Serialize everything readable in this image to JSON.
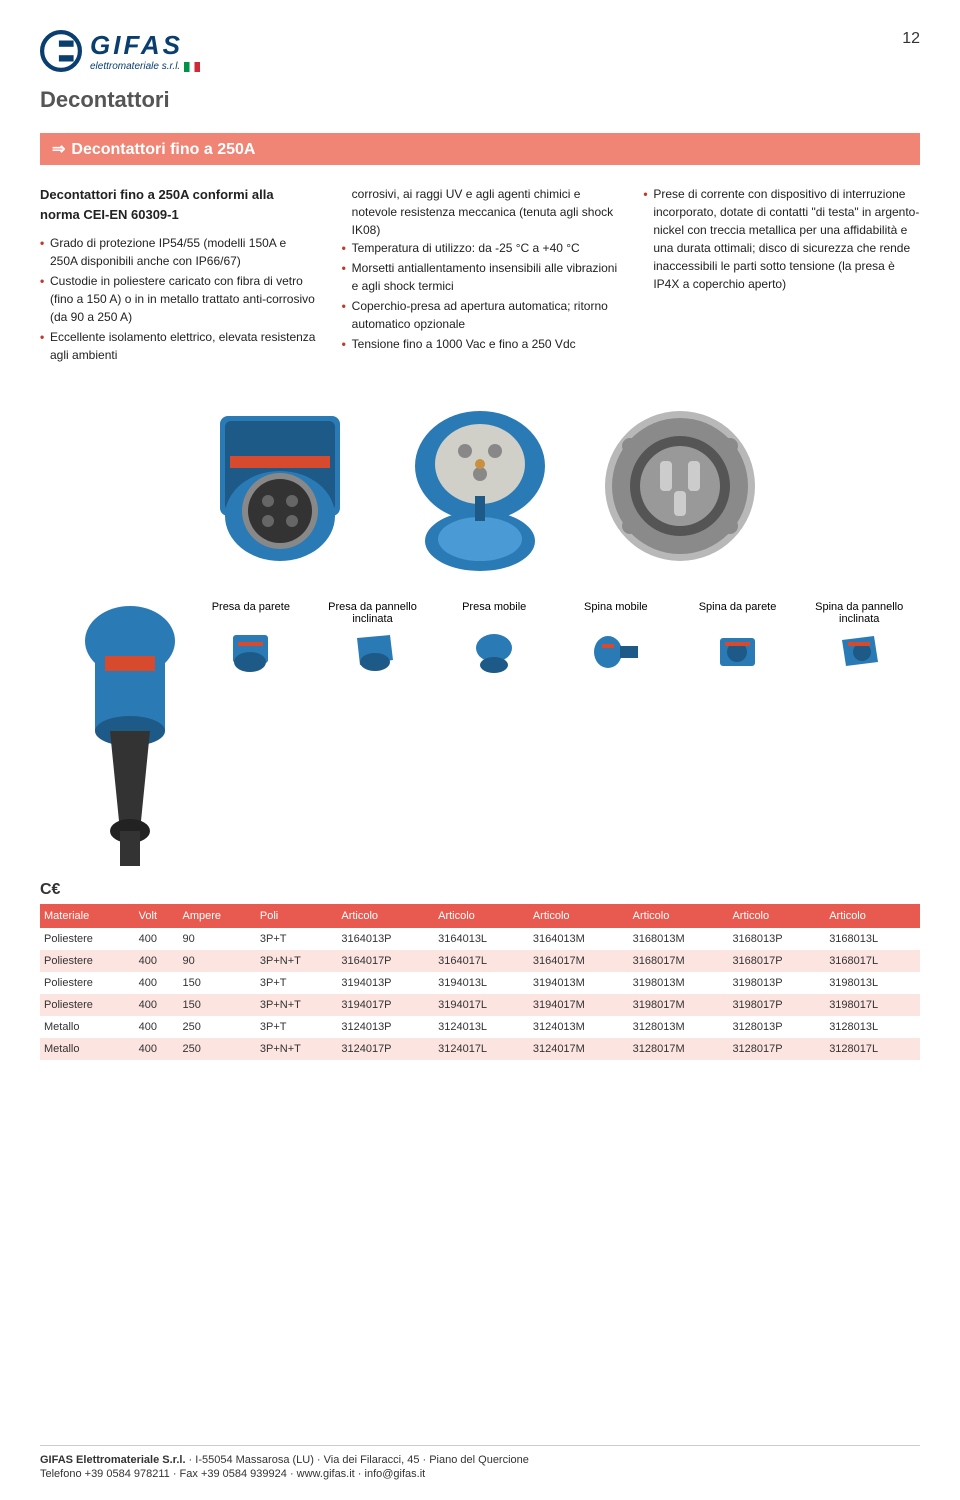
{
  "page_number": "12",
  "logo": {
    "main": "GIFAS",
    "sub": "elettromateriale s.r.l."
  },
  "section_title": "Decontattori",
  "banner": "Decontattori fino a 250A",
  "col1": {
    "title": "Decontattori fino a 250A conformi alla norma CEI-EN 60309-1",
    "items": [
      "Grado di protezione IP54/55 (modelli 150A e 250A disponibili anche con IP66/67)",
      "Custodie in poliestere caricato con fibra di vetro (fino a 150 A) o in in metallo trattato anti-corrosivo (da 90 a 250 A)",
      "Eccellente isolamento elettrico, elevata resistenza agli ambienti"
    ]
  },
  "col2": {
    "items": [
      "corrosivi, ai raggi UV e agli agenti chimici e notevole resistenza meccanica (tenuta agli shock IK08)",
      "Temperatura di utilizzo: da -25 °C a +40 °C",
      "Morsetti antiallentamento insensibili alle vibrazioni e agli shock termici",
      "Coperchio-presa ad apertura automatica; ritorno automatico opzionale",
      "Tensione fino a 1000 Vac e fino a 250 Vdc"
    ]
  },
  "col3": {
    "items": [
      "Prese di corrente con dispositivo di interruzione incorporato, dotate di contatti \"di testa\" in argento-nickel con treccia metallica per una affidabilità e una durata ottimali; disco di sicurezza che rende inaccessibili le parti sotto tensione (la presa è IP4X a coperchio aperto)"
    ]
  },
  "product_labels": [
    "Presa da parete",
    "Presa da pannello inclinata",
    "Presa mobile",
    "Spina mobile",
    "Spina da parete",
    "Spina da pannello inclinata"
  ],
  "ce_mark": "CE",
  "table": {
    "headers": [
      "Materiale",
      "Volt",
      "Ampere",
      "Poli",
      "Articolo",
      "Articolo",
      "Articolo",
      "Articolo",
      "Articolo",
      "Articolo"
    ],
    "rows": [
      [
        "Poliestere",
        "400",
        "90",
        "3P+T",
        "3164013P",
        "3164013L",
        "3164013M",
        "3168013M",
        "3168013P",
        "3168013L"
      ],
      [
        "Poliestere",
        "400",
        "90",
        "3P+N+T",
        "3164017P",
        "3164017L",
        "3164017M",
        "3168017M",
        "3168017P",
        "3168017L"
      ],
      [
        "Poliestere",
        "400",
        "150",
        "3P+T",
        "3194013P",
        "3194013L",
        "3194013M",
        "3198013M",
        "3198013P",
        "3198013L"
      ],
      [
        "Poliestere",
        "400",
        "150",
        "3P+N+T",
        "3194017P",
        "3194017L",
        "3194017M",
        "3198017M",
        "3198017P",
        "3198017L"
      ],
      [
        "Metallo",
        "400",
        "250",
        "3P+T",
        "3124013P",
        "3124013L",
        "3124013M",
        "3128013M",
        "3128013P",
        "3128013L"
      ],
      [
        "Metallo",
        "400",
        "250",
        "3P+N+T",
        "3124017P",
        "3124017L",
        "3124017M",
        "3128017M",
        "3128017P",
        "3128017L"
      ]
    ]
  },
  "footer": {
    "line1_bold": "GIFAS Elettromateriale S.r.l.",
    "line1_rest": " · I-55054 Massarosa (LU) · Via dei Filaracci, 45 · Piano del Quercione",
    "line2": "Telefono +39 0584 978211 · Fax +39 0584 939924 · www.gifas.it · info@gifas.it"
  },
  "colors": {
    "brand_blue": "#0a3e6f",
    "banner_bg": "#f08475",
    "table_header": "#e85a4f",
    "table_stripe": "#fce4e0",
    "bullet": "#c0392b",
    "prod_blue": "#2a7bb5",
    "prod_blue_dark": "#1e5a87",
    "prod_grey": "#b8b8b8",
    "prod_grey_dark": "#8a8a8a"
  }
}
